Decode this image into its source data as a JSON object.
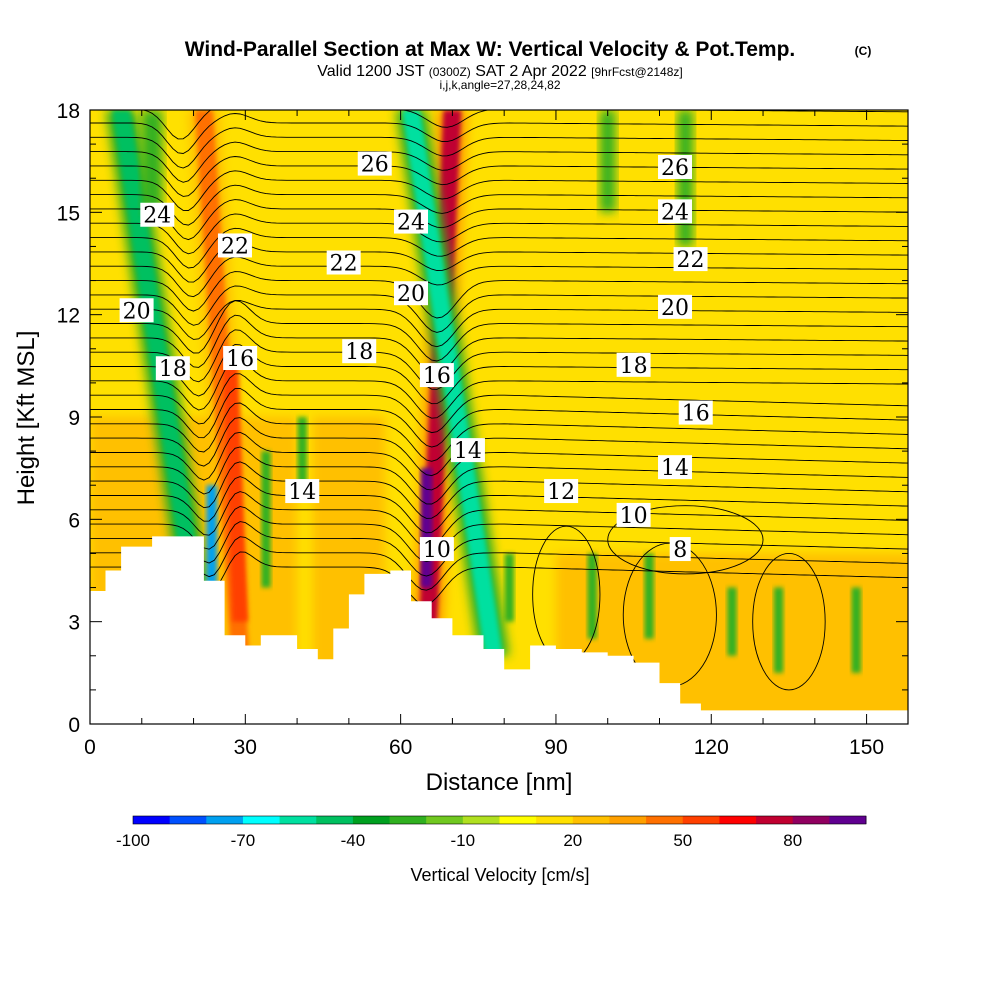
{
  "chart_data": {
    "type": "heatmap",
    "title": "Wind-Parallel Section at Max W: Vertical Velocity & Pot.Temp.",
    "title_mark": "(C)",
    "subtitle_main": "Valid 1200 JST",
    "subtitle_utc": "(0300Z)",
    "subtitle_date": "SAT 2 Apr 2022",
    "subtitle_fcst": "[9hrFcst@2148z]",
    "subtitle_indices": "i,j,k,angle=27,28,24,82",
    "xlabel": "Distance [nm]",
    "ylabel": "Height [Kft MSL]",
    "xlim": [
      0,
      158
    ],
    "ylim": [
      0,
      18
    ],
    "x_ticks": [
      "0",
      "30",
      "60",
      "90",
      "120",
      "150"
    ],
    "y_ticks": [
      "0",
      "3",
      "6",
      "9",
      "12",
      "15",
      "18"
    ],
    "colorbar": {
      "label": "Vertical Velocity [cm/s]",
      "tick_labels": [
        "-100",
        "-70",
        "-40",
        "-10",
        "20",
        "50",
        "80"
      ],
      "levels": [
        -100,
        -90,
        -80,
        -70,
        -60,
        -50,
        -40,
        -30,
        -20,
        -10,
        0,
        10,
        20,
        30,
        40,
        50,
        60,
        70,
        80,
        90
      ],
      "colors": [
        "#0000ff",
        "#0050ff",
        "#00a0f0",
        "#00ffff",
        "#00e0a0",
        "#00c060",
        "#00a020",
        "#30b020",
        "#70c820",
        "#b0e020",
        "#ffff00",
        "#ffe000",
        "#ffc000",
        "#ffa000",
        "#ff7000",
        "#ff4000",
        "#ff0000",
        "#c00030",
        "#900060",
        "#600090"
      ]
    },
    "contour_labels": [
      {
        "text": "26",
        "x": 55,
        "y": 16.4
      },
      {
        "text": "26",
        "x": 113,
        "y": 16.3
      },
      {
        "text": "24",
        "x": 13,
        "y": 14.9
      },
      {
        "text": "24",
        "x": 62,
        "y": 14.7
      },
      {
        "text": "24",
        "x": 113,
        "y": 15.0
      },
      {
        "text": "22",
        "x": 28,
        "y": 14.0
      },
      {
        "text": "22",
        "x": 49,
        "y": 13.5
      },
      {
        "text": "22",
        "x": 116,
        "y": 13.6
      },
      {
        "text": "20",
        "x": 9,
        "y": 12.1
      },
      {
        "text": "20",
        "x": 62,
        "y": 12.6
      },
      {
        "text": "20",
        "x": 113,
        "y": 12.2
      },
      {
        "text": "18",
        "x": 16,
        "y": 10.4
      },
      {
        "text": "18",
        "x": 52,
        "y": 10.9
      },
      {
        "text": "18",
        "x": 105,
        "y": 10.5
      },
      {
        "text": "16",
        "x": 29,
        "y": 10.7
      },
      {
        "text": "16",
        "x": 67,
        "y": 10.2
      },
      {
        "text": "16",
        "x": 117,
        "y": 9.1
      },
      {
        "text": "14",
        "x": 41,
        "y": 6.8
      },
      {
        "text": "14",
        "x": 73,
        "y": 8.0
      },
      {
        "text": "14",
        "x": 113,
        "y": 7.5
      },
      {
        "text": "12",
        "x": 91,
        "y": 6.8
      },
      {
        "text": "10",
        "x": 67,
        "y": 5.1
      },
      {
        "text": "10",
        "x": 105,
        "y": 6.1
      },
      {
        "text": "8",
        "x": 114,
        "y": 5.1
      }
    ],
    "terrain": [
      [
        0,
        3.9
      ],
      [
        3,
        4.5
      ],
      [
        6,
        5.2
      ],
      [
        12,
        5.5
      ],
      [
        18,
        5.5
      ],
      [
        22,
        4.2
      ],
      [
        26,
        2.6
      ],
      [
        30,
        2.3
      ],
      [
        33,
        2.6
      ],
      [
        40,
        2.2
      ],
      [
        44,
        1.9
      ],
      [
        47,
        2.8
      ],
      [
        50,
        3.8
      ],
      [
        53,
        4.4
      ],
      [
        58,
        4.5
      ],
      [
        62,
        3.6
      ],
      [
        66,
        3.1
      ],
      [
        70,
        2.6
      ],
      [
        76,
        2.2
      ],
      [
        80,
        1.6
      ],
      [
        85,
        2.3
      ],
      [
        90,
        2.2
      ],
      [
        95,
        2.1
      ],
      [
        100,
        2.0
      ],
      [
        105,
        1.8
      ],
      [
        110,
        1.2
      ],
      [
        114,
        0.6
      ],
      [
        118,
        0.4
      ],
      [
        158,
        0.4
      ]
    ],
    "updraft_bands": [
      {
        "name": "updraft-1",
        "x_top": 22,
        "x_bottom": 29,
        "w": 45
      },
      {
        "name": "updraft-2",
        "x_top": 70,
        "x_bottom": 65,
        "w": 75
      },
      {
        "name": "downdraft-1",
        "x_top": 6,
        "x_bottom": 22,
        "w": -45
      },
      {
        "name": "downdraft-2",
        "x_top": 62,
        "x_bottom": 78,
        "w": -55
      }
    ]
  }
}
